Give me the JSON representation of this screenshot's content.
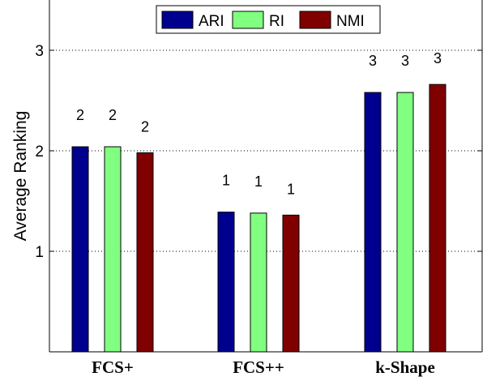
{
  "chart_data": {
    "type": "bar",
    "title": "",
    "xlabel": "",
    "ylabel": "Average Ranking",
    "ylim": [
      0,
      3.5
    ],
    "yticks": [
      1,
      2,
      3
    ],
    "categories": [
      "FCS+",
      "FCS++",
      "k-Shape"
    ],
    "series": [
      {
        "name": "ARI",
        "color": "#00008F",
        "values": [
          2.04,
          1.39,
          2.58
        ],
        "labels": [
          "2",
          "1",
          "3"
        ]
      },
      {
        "name": "RI",
        "color": "#80FF80",
        "values": [
          2.04,
          1.38,
          2.58
        ],
        "labels": [
          "2",
          "1",
          "3"
        ]
      },
      {
        "name": "NMI",
        "color": "#800000",
        "values": [
          1.98,
          1.36,
          2.66
        ],
        "labels": [
          "2",
          "1",
          "3"
        ]
      }
    ],
    "grid": "y-dotted",
    "legend": "top-center"
  }
}
